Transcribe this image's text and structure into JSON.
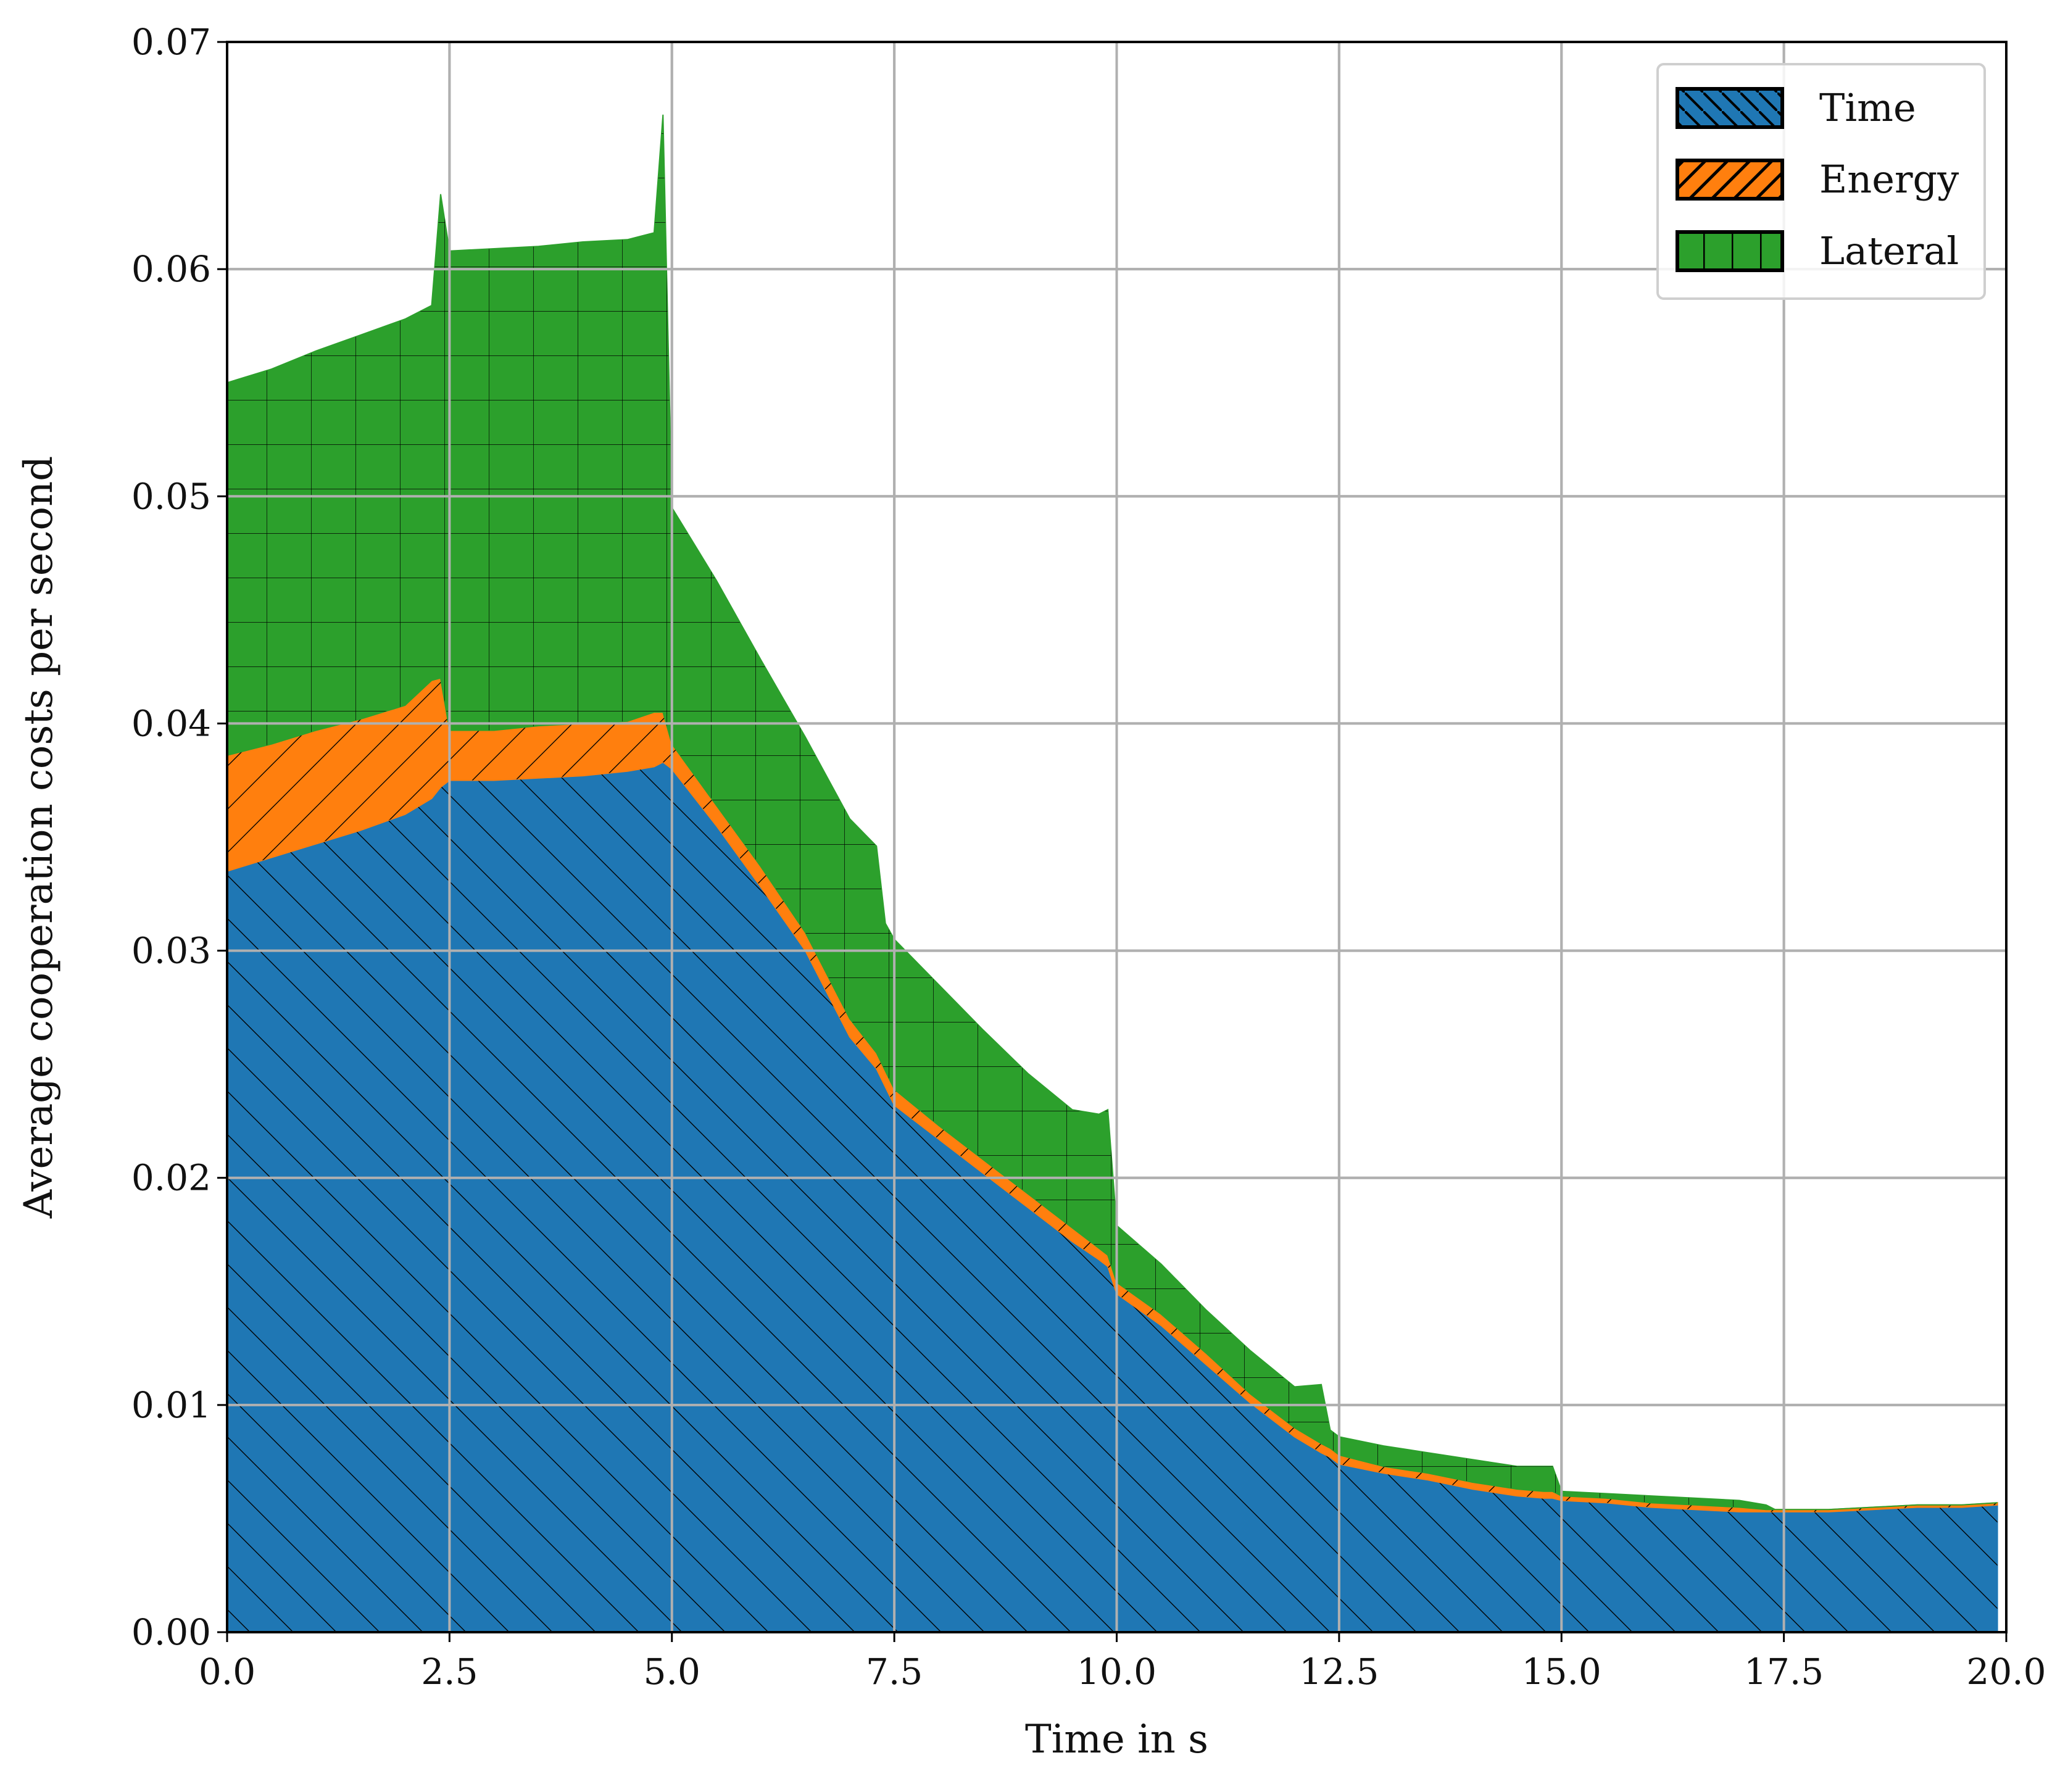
{
  "chart_data": {
    "type": "area",
    "stacked": true,
    "xlabel": "Time in s",
    "ylabel": "Average cooperation costs per second",
    "xlim": [
      0,
      20
    ],
    "ylim": [
      0,
      0.07
    ],
    "xticks": [
      "0.0",
      "2.5",
      "5.0",
      "7.5",
      "10.0",
      "12.5",
      "15.0",
      "17.5",
      "20.0"
    ],
    "yticks": [
      "0.00",
      "0.01",
      "0.02",
      "0.03",
      "0.04",
      "0.05",
      "0.06",
      "0.07"
    ],
    "grid": true,
    "legend_position": "top-right",
    "x": [
      0.0,
      0.5,
      1.0,
      1.5,
      2.0,
      2.3,
      2.4,
      2.5,
      3.0,
      3.5,
      4.0,
      4.5,
      4.8,
      4.9,
      5.0,
      5.5,
      6.0,
      6.5,
      7.0,
      7.3,
      7.4,
      7.5,
      8.0,
      8.5,
      9.0,
      9.5,
      9.8,
      9.9,
      10.0,
      10.5,
      11.0,
      11.5,
      12.0,
      12.3,
      12.4,
      12.5,
      13.0,
      13.5,
      14.0,
      14.5,
      14.8,
      14.9,
      15.0,
      15.5,
      16.0,
      16.5,
      17.0,
      17.3,
      17.4,
      17.5,
      18.0,
      18.5,
      19.0,
      19.5,
      19.9
    ],
    "series": [
      {
        "name": "Time",
        "color": "#1f77b4",
        "hatch": "back-diagonal",
        "values": [
          0.0335,
          0.0341,
          0.0347,
          0.0353,
          0.036,
          0.0367,
          0.0372,
          0.0375,
          0.0375,
          0.0376,
          0.0377,
          0.0379,
          0.0381,
          0.0383,
          0.038,
          0.0355,
          0.0328,
          0.03,
          0.0262,
          0.0248,
          0.024,
          0.0232,
          0.0217,
          0.0202,
          0.0187,
          0.0172,
          0.0164,
          0.0161,
          0.0149,
          0.0135,
          0.0118,
          0.0101,
          0.0086,
          0.0079,
          0.0077,
          0.0074,
          0.007,
          0.0067,
          0.0063,
          0.006,
          0.0059,
          0.0059,
          0.0058,
          0.0057,
          0.0055,
          0.0054,
          0.0053,
          0.0053,
          0.0053,
          0.0053,
          0.0053,
          0.0054,
          0.0055,
          0.0055,
          0.0056
        ]
      },
      {
        "name": "Energy",
        "color": "#ff7f0e",
        "hatch": "forward-diagonal",
        "values": [
          0.0051,
          0.005,
          0.005,
          0.0049,
          0.0048,
          0.0052,
          0.0048,
          0.0022,
          0.0022,
          0.0023,
          0.0023,
          0.0022,
          0.0024,
          0.0022,
          0.0011,
          0.0009,
          0.0009,
          0.0008,
          0.0008,
          0.0007,
          0.0007,
          0.0007,
          0.0006,
          0.0006,
          0.0006,
          0.0006,
          0.0005,
          0.0005,
          0.0005,
          0.0005,
          0.0005,
          0.0004,
          0.0004,
          0.0004,
          0.0004,
          0.0004,
          0.0003,
          0.0003,
          0.0003,
          0.0003,
          0.0003,
          0.0003,
          0.0002,
          0.0002,
          0.0002,
          0.0002,
          0.0002,
          0.0001,
          0.0001,
          0.0001,
          0.0001,
          0.0001,
          0.0001,
          0.0001,
          0.0001
        ]
      },
      {
        "name": "Lateral",
        "color": "#2ca02c",
        "hatch": "grid",
        "values": [
          0.0164,
          0.0165,
          0.0167,
          0.0169,
          0.017,
          0.0165,
          0.0213,
          0.0211,
          0.0212,
          0.0211,
          0.0212,
          0.0212,
          0.0211,
          0.0263,
          0.0104,
          0.0099,
          0.0091,
          0.0086,
          0.0088,
          0.0091,
          0.0065,
          0.0066,
          0.0062,
          0.0057,
          0.0053,
          0.0052,
          0.0059,
          0.0064,
          0.0025,
          0.0022,
          0.0019,
          0.0019,
          0.0018,
          0.0026,
          0.0008,
          0.0008,
          0.0009,
          0.0009,
          0.001,
          0.001,
          0.0011,
          0.0011,
          0.0002,
          0.0002,
          0.0003,
          0.0003,
          0.0003,
          0.0002,
          0.0,
          0.0,
          0.0,
          0.0,
          0.0,
          0.0,
          0.0
        ]
      }
    ]
  }
}
